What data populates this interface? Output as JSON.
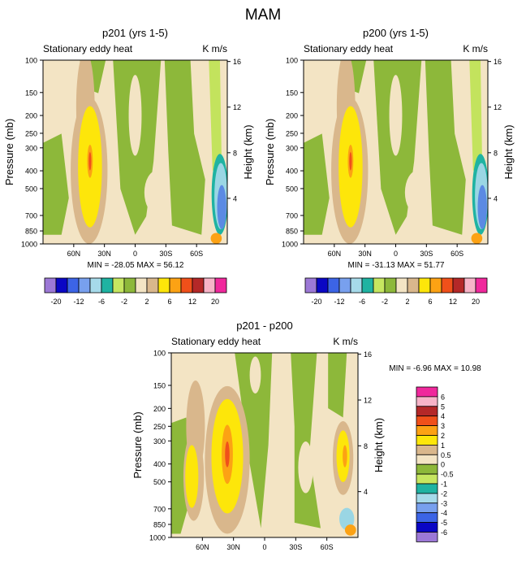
{
  "title": "MAM",
  "colors": {
    "background": "#f3e4c4",
    "green": "#8db83a",
    "light_green": "#c3e35d",
    "tan": "#d9b78c",
    "yellow": "#fde60a",
    "orange": "#fca214",
    "red_orange": "#f0501a",
    "teal": "#1fb3a2",
    "light_blue": "#9ad6e4",
    "blue": "#5b8ae3"
  },
  "chart_data": [
    {
      "type": "contour",
      "id": "p201",
      "title": "p201 (yrs 1-5)",
      "left_label": "Stationary eddy heat",
      "units": "K m/s",
      "ylabel": "Pressure (mb)",
      "ylabel_right": "Height (km)",
      "y_ticks": [
        "100",
        "150",
        "200",
        "250",
        "300",
        "400",
        "500",
        "700",
        "850",
        "1000"
      ],
      "y_tick_values": [
        100,
        150,
        200,
        250,
        300,
        400,
        500,
        700,
        850,
        1000
      ],
      "height_ticks": [
        "16",
        "12",
        "8",
        "4"
      ],
      "height_tick_values": [
        16,
        12,
        8,
        4
      ],
      "x_ticks": [
        "60N",
        "30N",
        "0",
        "30S",
        "60S"
      ],
      "x_tick_values": [
        60,
        30,
        0,
        -30,
        -60
      ],
      "xlim": [
        90,
        -90
      ],
      "ylim": [
        100,
        1000
      ],
      "min_max": "MIN = -28.05   MAX =  56.12"
    },
    {
      "type": "contour",
      "id": "p200",
      "title": "p200 (yrs 1-5)",
      "left_label": "Stationary eddy heat",
      "units": "K m/s",
      "ylabel": "Pressure (mb)",
      "ylabel_right": "Height (km)",
      "y_ticks": [
        "100",
        "150",
        "200",
        "250",
        "300",
        "400",
        "500",
        "700",
        "850",
        "1000"
      ],
      "y_tick_values": [
        100,
        150,
        200,
        250,
        300,
        400,
        500,
        700,
        850,
        1000
      ],
      "height_ticks": [
        "16",
        "12",
        "8",
        "4"
      ],
      "height_tick_values": [
        16,
        12,
        8,
        4
      ],
      "x_ticks": [
        "60N",
        "30N",
        "0",
        "30S",
        "60S"
      ],
      "x_tick_values": [
        60,
        30,
        0,
        -30,
        -60
      ],
      "xlim": [
        90,
        -90
      ],
      "ylim": [
        100,
        1000
      ],
      "min_max": "MIN = -31.13   MAX =  51.77"
    },
    {
      "type": "contour",
      "id": "diff",
      "title": "p201 - p200",
      "left_label": "Stationary eddy heat",
      "units": "K m/s",
      "ylabel": "Pressure (mb)",
      "ylabel_right": "Height (km)",
      "y_ticks": [
        "100",
        "150",
        "200",
        "250",
        "300",
        "400",
        "500",
        "700",
        "850",
        "1000"
      ],
      "y_tick_values": [
        100,
        150,
        200,
        250,
        300,
        400,
        500,
        700,
        850,
        1000
      ],
      "height_ticks": [
        "16",
        "12",
        "8",
        "4"
      ],
      "height_tick_values": [
        16,
        12,
        8,
        4
      ],
      "x_ticks": [
        "60N",
        "30N",
        "0",
        "30S",
        "60S"
      ],
      "x_tick_values": [
        60,
        30,
        0,
        -30,
        -60
      ],
      "xlim": [
        90,
        -90
      ],
      "ylim": [
        100,
        1000
      ],
      "min_max": "MIN =  -6.96   MAX =  10.98"
    }
  ],
  "colorbar_fields": {
    "colors": [
      "#9c78d6",
      "#0a06c4",
      "#3c64e6",
      "#78a0ee",
      "#a6daea",
      "#1fb3a2",
      "#c6e660",
      "#8db83a",
      "#f3e4c4",
      "#d9b78c",
      "#fde60a",
      "#fca214",
      "#f0501a",
      "#b42828",
      "#f7b4c8",
      "#f0289c"
    ],
    "labels": [
      "-20",
      "-12",
      "-6",
      "-2",
      "2",
      "6",
      "12",
      "20"
    ]
  },
  "colorbar_diff": {
    "colors": [
      "#f0289c",
      "#f7b4c8",
      "#b42828",
      "#f0501a",
      "#fca214",
      "#fde60a",
      "#d9b78c",
      "#f3e4c4",
      "#8db83a",
      "#c6e660",
      "#1fb3a2",
      "#a6daea",
      "#78a0ee",
      "#3c64e6",
      "#0a06c4",
      "#9c78d6"
    ],
    "labels": [
      "6",
      "5",
      "4",
      "3",
      "2",
      "1",
      "0.5",
      "0",
      "-0.5",
      "-1",
      "-2",
      "-3",
      "-4",
      "-5",
      "-6"
    ]
  }
}
